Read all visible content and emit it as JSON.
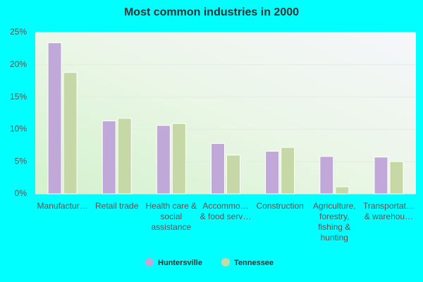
{
  "chart_data": {
    "type": "bar",
    "title": "Most common industries in 2000",
    "categories": [
      "Manufactur…",
      "Retail trade",
      "Health care & social assistance",
      "Accommo… & food serv…",
      "Construction",
      "Agriculture, forestry, fishing & hunting",
      "Transportat… & warehou…"
    ],
    "series": [
      {
        "name": "Huntersville",
        "color": "#c0a8d8",
        "values": [
          23.4,
          11.3,
          10.6,
          7.8,
          6.6,
          5.8,
          5.7
        ]
      },
      {
        "name": "Tennessee",
        "color": "#c5d8a6",
        "values": [
          18.8,
          11.7,
          10.9,
          6.0,
          7.2,
          1.1,
          5.0
        ]
      }
    ],
    "ylim": [
      0,
      25
    ],
    "yticks": [
      {
        "value": 0,
        "label": "0%"
      },
      {
        "value": 5,
        "label": "5%"
      },
      {
        "value": 10,
        "label": "10%"
      },
      {
        "value": 15,
        "label": "15%"
      },
      {
        "value": 20,
        "label": "20%"
      },
      {
        "value": 25,
        "label": "25%"
      }
    ],
    "grid": true,
    "legend": "bottom"
  }
}
